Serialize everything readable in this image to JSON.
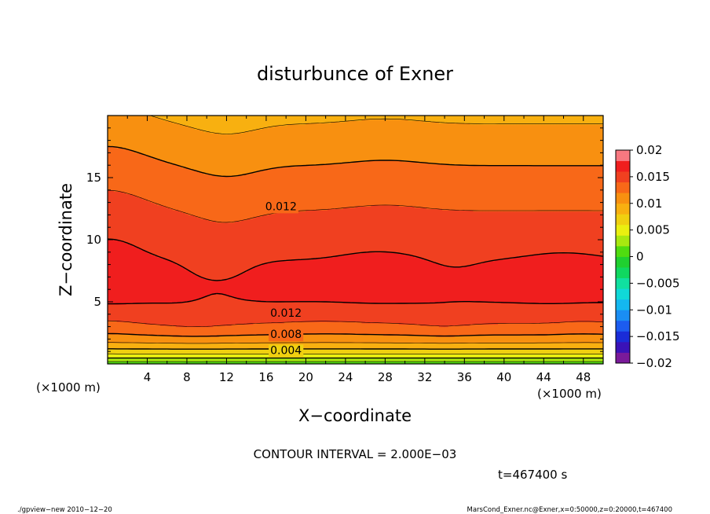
{
  "chart_data": {
    "type": "contour",
    "title": "disturbunce of Exner",
    "xlabel": "X−coordinate",
    "ylabel": "Z−coordinate",
    "x_unit": "(×1000 m)",
    "y_unit": "(×1000 m)",
    "xlim": [
      0,
      50
    ],
    "ylim": [
      0,
      20
    ],
    "x_ticks": [
      4,
      8,
      12,
      16,
      20,
      24,
      28,
      32,
      36,
      40,
      44,
      48
    ],
    "y_ticks": [
      5,
      10,
      15
    ],
    "contour_interval_text": "CONTOUR INTERVAL = 2.000E−03",
    "time_text": "t=467400 s",
    "contour_labels": [
      {
        "text": "0.012",
        "x": 17.5,
        "z": 12.7
      },
      {
        "text": "0.012",
        "x": 18,
        "z": 4.1
      },
      {
        "text": "0.008",
        "x": 18,
        "z": 2.4
      },
      {
        "text": "0.004",
        "x": 18,
        "z": 1.1
      }
    ],
    "colorbar": {
      "ticks": [
        "0.02",
        "0.015",
        "0.01",
        "0.005",
        "0",
        "−0.005",
        "−0.01",
        "−0.015",
        "−0.02"
      ],
      "levels": [
        -0.02,
        -0.018,
        -0.016,
        -0.014,
        -0.012,
        -0.01,
        -0.008,
        -0.006,
        -0.004,
        -0.002,
        0,
        0.002,
        0.004,
        0.006,
        0.008,
        0.01,
        0.012,
        0.014,
        0.016,
        0.018,
        0.02
      ],
      "colors": [
        "#7a1a9a",
        "#3a12b8",
        "#1a2cd8",
        "#1c5cf0",
        "#1a8ef4",
        "#14b8f0",
        "#10d8d8",
        "#10e0a0",
        "#10d860",
        "#20d030",
        "#50dc10",
        "#a8e810",
        "#eaf010",
        "#f0d010",
        "#f8b010",
        "#f89010",
        "#f86818",
        "#f04020",
        "#f01e1e",
        "#f87880"
      ]
    }
  },
  "footer": {
    "left": "./gpview−new   2010−12−20",
    "right": "MarsCond_Exner.nc@Exner,x=0:50000,z=0:20000,t=467400"
  }
}
